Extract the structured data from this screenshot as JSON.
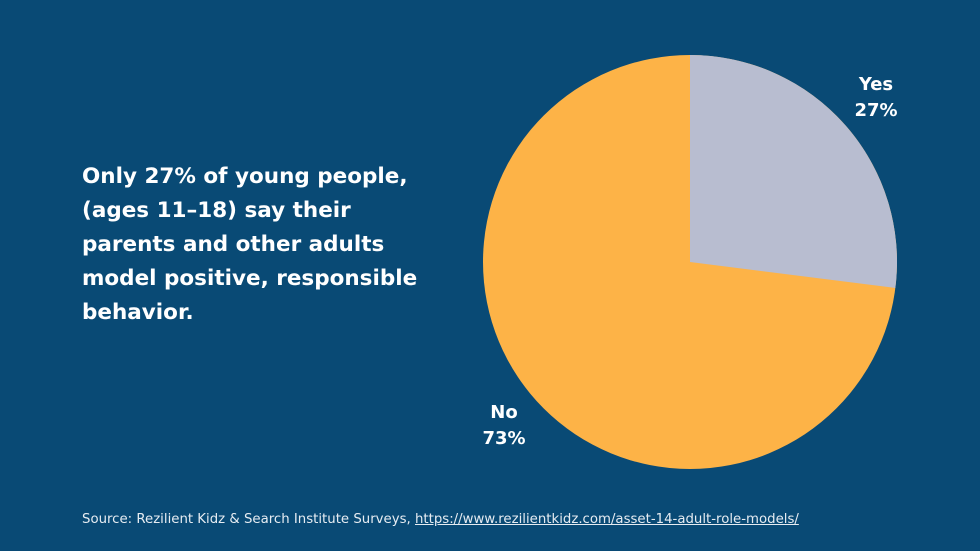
{
  "headline": "Only 27% of young people, (ages 11–18) say their parents and other adults model positive, responsible behavior.",
  "colors": {
    "background": "#094a75",
    "yes": "#b8bdd0",
    "no": "#fdb347",
    "text": "#ffffff"
  },
  "labels": {
    "yes": {
      "name": "Yes",
      "pct": "27%"
    },
    "no": {
      "name": "No",
      "pct": "73%"
    }
  },
  "source": {
    "prefix": "Source: Rezilient Kidz & Search Institute Surveys, ",
    "link": "https://www.rezilientkidz.com/asset-14-adult-role-models/"
  },
  "chart_data": {
    "type": "pie",
    "title": "",
    "categories": [
      "Yes",
      "No"
    ],
    "values": [
      27,
      73
    ],
    "unit": "%",
    "colors": [
      "#b8bdd0",
      "#fdb347"
    ],
    "start_angle": "12 o'clock, clockwise",
    "legend": "none (direct labels)"
  }
}
